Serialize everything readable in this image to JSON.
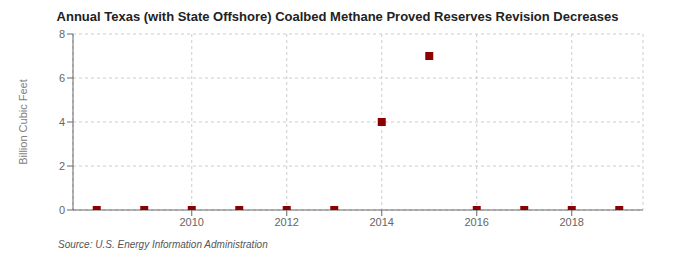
{
  "chart_data": {
    "type": "scatter",
    "title": "Annual Texas (with State Offshore) Coalbed Methane Proved Reserves Revision Decreases",
    "ylabel": "Billion Cubic Feet",
    "annotations": [
      "Source: U.S. Energy Information Administration"
    ],
    "x": [
      2008,
      2009,
      2010,
      2011,
      2012,
      2013,
      2014,
      2015,
      2016,
      2017,
      2018,
      2019
    ],
    "values": [
      0.0,
      0.0,
      0.0,
      0.0,
      0.0,
      0.0,
      4.0,
      7.0,
      0.0,
      0.0,
      0.0,
      0.0
    ],
    "color": "#8b0000",
    "marker": "square",
    "xlim": [
      2007.5,
      2019.5
    ],
    "xticks": [
      2010,
      2012,
      2014,
      2016,
      2018
    ],
    "ylim": [
      0,
      8
    ],
    "yticks": [
      0,
      2,
      4,
      6,
      8
    ],
    "grid": true
  }
}
